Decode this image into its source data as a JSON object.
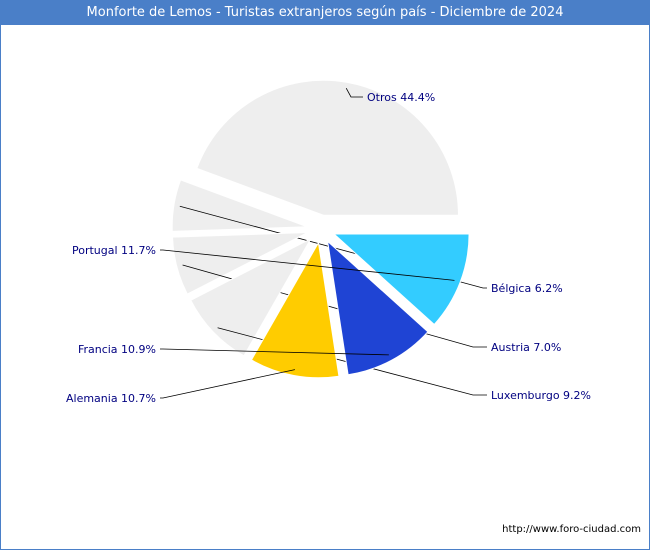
{
  "header": {
    "title": "Monforte de Lemos - Turistas extranjeros según país - Diciembre de 2024"
  },
  "footer": {
    "source": "http://www.foro-ciudad.com"
  },
  "chart_data": {
    "type": "pie",
    "title": "Monforte de Lemos - Turistas extranjeros según país - Diciembre de 2024",
    "unit": "%",
    "slices": [
      {
        "label": "Otros 44.4%",
        "name": "Otros",
        "value": 44.4,
        "color": "#eeeeee"
      },
      {
        "label": "Bélgica 6.2%",
        "name": "Bélgica",
        "value": 6.2,
        "color": "#eeeeee"
      },
      {
        "label": "Austria 7.0%",
        "name": "Austria",
        "value": 7.0,
        "color": "#eeeeee"
      },
      {
        "label": "Luxemburgo 9.2%",
        "name": "Luxemburgo",
        "value": 9.2,
        "color": "#eeeeee"
      },
      {
        "label": "Alemania 10.7%",
        "name": "Alemania",
        "value": 10.7,
        "color": "#ffcc00"
      },
      {
        "label": "Francia 10.9%",
        "name": "Francia",
        "value": 10.9,
        "color": "#1f44d4"
      },
      {
        "label": "Portugal 11.7%",
        "name": "Portugal",
        "value": 11.7,
        "color": "#33ccff"
      }
    ],
    "label_color": "#000080",
    "leader_color": "#000000"
  }
}
